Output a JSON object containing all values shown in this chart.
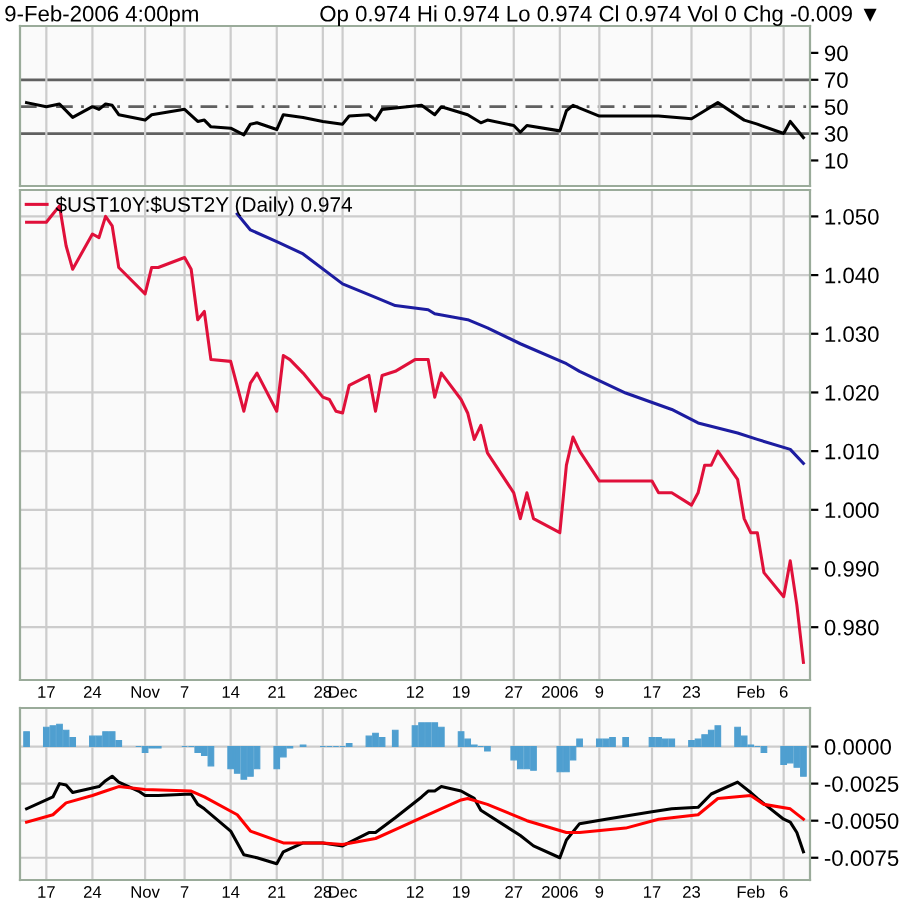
{
  "chart_data": [
    {
      "type": "line",
      "title": "9-Feb-2006 4:00pm",
      "subtitle": "Op 0.974 Hi 0.974 Lo 0.974 Cl 0.974 Vol 0 Chg -0.009 ▼",
      "xlim": [
        "2005-10-13",
        "2006-02-10"
      ],
      "ylim": [
        -9,
        110
      ],
      "yticks": [
        10,
        30,
        50,
        70,
        90
      ],
      "xticks": [
        "2005-10-17",
        "2005-10-24",
        "2005-11-01",
        "2005-11-07",
        "2005-11-14",
        "2005-11-21",
        "2005-11-28",
        "2005-12-01",
        "2005-12-12",
        "2005-12-19",
        "2005-12-27",
        "2006-01-03",
        "2006-01-09",
        "2006-01-17",
        "2006-01-23",
        "2006-02-01",
        "2006-02-06"
      ],
      "tick_labels": "y",
      "grid": "x",
      "ref_lines": [
        {
          "axis": "y",
          "value": 70,
          "color": "#606060",
          "line_style": "solid"
        },
        {
          "axis": "y",
          "value": 50,
          "color": "#606060",
          "line_style": "dashed"
        },
        {
          "axis": "y",
          "value": 30,
          "color": "#606060",
          "line_style": "solid"
        }
      ],
      "series": [
        {
          "color": "#000000",
          "x": [
            "2005-10-14",
            "2005-10-17",
            "2005-10-19",
            "2005-10-21",
            "2005-10-24",
            "2005-10-25",
            "2005-10-26",
            "2005-10-27",
            "2005-10-28",
            "2005-11-01",
            "2005-11-02",
            "2005-11-07",
            "2005-11-09",
            "2005-11-10",
            "2005-11-11",
            "2005-11-14",
            "2005-11-16",
            "2005-11-17",
            "2005-11-18",
            "2005-11-21",
            "2005-11-22",
            "2005-11-25",
            "2005-11-28",
            "2005-12-01",
            "2005-12-02",
            "2005-12-05",
            "2005-12-06",
            "2005-12-07",
            "2005-12-09",
            "2005-12-13",
            "2005-12-15",
            "2005-12-16",
            "2005-12-20",
            "2005-12-22",
            "2005-12-23",
            "2005-12-27",
            "2005-12-28",
            "2005-12-29",
            "2006-01-03",
            "2006-01-04",
            "2006-01-05",
            "2006-01-09",
            "2006-01-18",
            "2006-01-23",
            "2006-01-25",
            "2006-01-26",
            "2006-01-27",
            "2006-01-31",
            "2006-02-02",
            "2006-02-06",
            "2006-02-07",
            "2006-02-09"
          ],
          "values": [
            53,
            50,
            52,
            42,
            50,
            48,
            52,
            51,
            44,
            40,
            44,
            48,
            39,
            40,
            35,
            34,
            29,
            37,
            38,
            33,
            44,
            42,
            39,
            37,
            43,
            44,
            40,
            48,
            49,
            51,
            44,
            50,
            44,
            38,
            40,
            36,
            31,
            36,
            32,
            47,
            51,
            43,
            43,
            41,
            47,
            50,
            53,
            40,
            37,
            30,
            39,
            27
          ]
        }
      ]
    },
    {
      "type": "line",
      "xlim": [
        "2005-10-13",
        "2006-02-10"
      ],
      "ylim": [
        0.971,
        1.0545
      ],
      "yticks": [
        {
          "value": 0.98,
          "label": "0.980"
        },
        {
          "value": 0.99,
          "label": "0.990"
        },
        {
          "value": 1.0,
          "label": "1.000"
        },
        {
          "value": 1.01,
          "label": "1.010"
        },
        {
          "value": 1.02,
          "label": "1.020"
        },
        {
          "value": 1.03,
          "label": "1.030"
        },
        {
          "value": 1.04,
          "label": "1.040"
        },
        {
          "value": 1.05,
          "label": "1.050"
        }
      ],
      "xticks": [
        {
          "value": "2005-10-17",
          "label": "17"
        },
        {
          "value": "2005-10-24",
          "label": "24"
        },
        {
          "value": "2005-11-01",
          "label": "Nov"
        },
        {
          "value": "2005-11-07",
          "label": "7"
        },
        {
          "value": "2005-11-14",
          "label": "14"
        },
        {
          "value": "2005-11-21",
          "label": "21"
        },
        {
          "value": "2005-11-28",
          "label": "28"
        },
        {
          "value": "2005-12-01",
          "label": "Dec"
        },
        {
          "value": "2005-12-12",
          "label": "12"
        },
        {
          "value": "2005-12-19",
          "label": "19"
        },
        {
          "value": "2005-12-27",
          "label": "27"
        },
        {
          "value": "2006-01-03",
          "label": "2006"
        },
        {
          "value": "2006-01-09",
          "label": "9"
        },
        {
          "value": "2006-01-17",
          "label": "17"
        },
        {
          "value": "2006-01-23",
          "label": "23"
        },
        {
          "value": "2006-02-01",
          "label": "Feb"
        },
        {
          "value": "2006-02-06",
          "label": "6"
        }
      ],
      "grid": true,
      "legend": "top left",
      "series": [
        {
          "name": "$UST10Y:$UST2Y (Daily) 0.974",
          "color": "#e0103a",
          "x": [
            "2005-10-14",
            "2005-10-17",
            "2005-10-18",
            "2005-10-19",
            "2005-10-20",
            "2005-10-21",
            "2005-10-24",
            "2005-10-25",
            "2005-10-26",
            "2005-10-27",
            "2005-10-28",
            "2005-11-01",
            "2005-11-02",
            "2005-11-03",
            "2005-11-07",
            "2005-11-08",
            "2005-11-09",
            "2005-11-10",
            "2005-11-11",
            "2005-11-14",
            "2005-11-16",
            "2005-11-17",
            "2005-11-18",
            "2005-11-21",
            "2005-11-22",
            "2005-11-23",
            "2005-11-25",
            "2005-11-28",
            "2005-11-29",
            "2005-11-30",
            "2005-12-01",
            "2005-12-02",
            "2005-12-05",
            "2005-12-06",
            "2005-12-07",
            "2005-12-09",
            "2005-12-12",
            "2005-12-14",
            "2005-12-15",
            "2005-12-16",
            "2005-12-19",
            "2005-12-20",
            "2005-12-21",
            "2005-12-22",
            "2005-12-23",
            "2005-12-27",
            "2005-12-28",
            "2005-12-29",
            "2005-12-30",
            "2006-01-03",
            "2006-01-04",
            "2006-01-05",
            "2006-01-06",
            "2006-01-09",
            "2006-01-10",
            "2006-01-17",
            "2006-01-18",
            "2006-01-20",
            "2006-01-23",
            "2006-01-24",
            "2006-01-25",
            "2006-01-26",
            "2006-01-27",
            "2006-01-30",
            "2006-01-31",
            "2006-02-01",
            "2006-02-02",
            "2006-02-03",
            "2006-02-06",
            "2006-02-07",
            "2006-02-08",
            "2006-02-09"
          ],
          "values": [
            1.049,
            1.049,
            1.0504,
            1.0518,
            1.045,
            1.041,
            1.047,
            1.0464,
            1.05,
            1.0484,
            1.0413,
            1.0368,
            1.0413,
            1.0413,
            1.043,
            1.041,
            1.0324,
            1.0338,
            1.0256,
            1.0253,
            1.0168,
            1.0216,
            1.0233,
            1.0168,
            1.0263,
            1.0256,
            1.0233,
            1.0192,
            1.0188,
            1.0168,
            1.0165,
            1.0212,
            1.0229,
            1.0168,
            1.0229,
            1.0236,
            1.0256,
            1.0256,
            1.0192,
            1.0233,
            1.0188,
            1.0165,
            1.012,
            1.0144,
            1.0097,
            1.0029,
            0.9985,
            1.0029,
            0.9985,
            0.9961,
            1.0076,
            1.0124,
            1.01,
            1.0049,
            1.0049,
            1.0049,
            1.0029,
            1.0029,
            1.0008,
            1.0029,
            1.0076,
            1.0076,
            1.01,
            1.0052,
            0.9985,
            0.9961,
            0.9961,
            0.9893,
            0.9852,
            0.9913,
            0.9838,
            0.974
          ]
        },
        {
          "color": "#1c1ca0",
          "x": [
            "2005-11-15",
            "2005-11-17",
            "2005-11-21",
            "2005-11-25",
            "2005-12-01",
            "2005-12-06",
            "2005-12-09",
            "2005-12-14",
            "2005-12-15",
            "2005-12-20",
            "2005-12-23",
            "2005-12-28",
            "2006-01-04",
            "2006-01-06",
            "2006-01-13",
            "2006-01-20",
            "2006-01-24",
            "2006-01-30",
            "2006-02-02",
            "2006-02-07",
            "2006-02-09"
          ],
          "values": [
            1.0504,
            1.0477,
            1.0457,
            1.0436,
            1.0385,
            1.0362,
            1.0348,
            1.0341,
            1.0334,
            1.0324,
            1.031,
            1.0283,
            1.0249,
            1.0236,
            1.0199,
            1.0171,
            1.0148,
            1.0131,
            1.012,
            1.0103,
            1.0079
          ]
        }
      ]
    },
    {
      "type": "line",
      "xlim": [
        "2005-10-13",
        "2006-02-10"
      ],
      "ylim": [
        -0.009,
        0.0026
      ],
      "yticks": [
        {
          "value": 0,
          "label": "0.0000"
        },
        {
          "value": -0.0025,
          "label": "-0.0025"
        },
        {
          "value": -0.005,
          "label": "-0.0050"
        },
        {
          "value": -0.0075,
          "label": "-0.0075"
        }
      ],
      "xticks": [
        {
          "value": "2005-10-17",
          "label": "17"
        },
        {
          "value": "2005-10-24",
          "label": "24"
        },
        {
          "value": "2005-11-01",
          "label": "Nov"
        },
        {
          "value": "2005-11-07",
          "label": "7"
        },
        {
          "value": "2005-11-14",
          "label": "14"
        },
        {
          "value": "2005-11-21",
          "label": "21"
        },
        {
          "value": "2005-11-28",
          "label": "28"
        },
        {
          "value": "2005-12-01",
          "label": "Dec"
        },
        {
          "value": "2005-12-12",
          "label": "12"
        },
        {
          "value": "2005-12-19",
          "label": "19"
        },
        {
          "value": "2005-12-27",
          "label": "27"
        },
        {
          "value": "2006-01-03",
          "label": "2006"
        },
        {
          "value": "2006-01-09",
          "label": "9"
        },
        {
          "value": "2006-01-17",
          "label": "17"
        },
        {
          "value": "2006-01-23",
          "label": "23"
        },
        {
          "value": "2006-02-01",
          "label": "Feb"
        },
        {
          "value": "2006-02-06",
          "label": "6"
        }
      ],
      "grid": true,
      "series": [
        {
          "type": "bar",
          "color": "#4f9fd0",
          "x": [
            "2005-10-14",
            "2005-10-17",
            "2005-10-18",
            "2005-10-19",
            "2005-10-20",
            "2005-10-21",
            "2005-10-24",
            "2005-10-25",
            "2005-10-26",
            "2005-10-27",
            "2005-10-28",
            "2005-10-31",
            "2005-11-01",
            "2005-11-02",
            "2005-11-03",
            "2005-11-07",
            "2005-11-08",
            "2005-11-09",
            "2005-11-10",
            "2005-11-11",
            "2005-11-14",
            "2005-11-15",
            "2005-11-16",
            "2005-11-17",
            "2005-11-18",
            "2005-11-21",
            "2005-11-22",
            "2005-11-23",
            "2005-11-25",
            "2005-11-28",
            "2005-11-29",
            "2005-11-30",
            "2005-12-01",
            "2005-12-02",
            "2005-12-05",
            "2005-12-06",
            "2005-12-07",
            "2005-12-09",
            "2005-12-12",
            "2005-12-13",
            "2005-12-14",
            "2005-12-15",
            "2005-12-16",
            "2005-12-19",
            "2005-12-20",
            "2005-12-21",
            "2005-12-22",
            "2005-12-23",
            "2005-12-27",
            "2005-12-28",
            "2005-12-29",
            "2005-12-30",
            "2006-01-03",
            "2006-01-04",
            "2006-01-05",
            "2006-01-06",
            "2006-01-09",
            "2006-01-10",
            "2006-01-11",
            "2006-01-13",
            "2006-01-17",
            "2006-01-18",
            "2006-01-19",
            "2006-01-20",
            "2006-01-23",
            "2006-01-24",
            "2006-01-25",
            "2006-01-26",
            "2006-01-27",
            "2006-01-30",
            "2006-01-31",
            "2006-02-01",
            "2006-02-02",
            "2006-02-03",
            "2006-02-06",
            "2006-02-07",
            "2006-02-08",
            "2006-02-09"
          ],
          "values": [
            0.001,
            0.0013,
            0.0014,
            0.0015,
            0.0011,
            0.0006,
            0.0007,
            0.0007,
            0.001,
            0.001,
            0.0004,
            0,
            -0.0004,
            -0.0001,
            -0.0001,
            0,
            0,
            -0.0004,
            -0.0006,
            -0.0013,
            -0.0015,
            -0.0018,
            -0.0022,
            -0.002,
            -0.0015,
            -0.0015,
            -0.0007,
            -0.0001,
            0.0001,
            0,
            0,
            0,
            0,
            0.0002,
            0.0007,
            0.0009,
            0.0006,
            0.0011,
            0.0014,
            0.0016,
            0.0016,
            0.0016,
            0.0013,
            0.001,
            0.0005,
            0.0001,
            0,
            -0.0003,
            -0.0009,
            -0.0015,
            -0.0015,
            -0.0016,
            -0.0017,
            -0.0017,
            -0.0009,
            0.0005,
            0.0005,
            0.0005,
            0.0006,
            0.0006,
            0.0006,
            0.0006,
            0.0005,
            0.0005,
            0.0004,
            0.0005,
            0.0008,
            0.0011,
            0.0014,
            0.0013,
            0.0007,
            0.0001,
            0,
            -0.0004,
            -0.0012,
            -0.0011,
            -0.0014,
            -0.002
          ]
        },
        {
          "color": "#000000",
          "x": [
            "2005-10-14",
            "2005-10-18",
            "2005-10-19",
            "2005-10-20",
            "2005-10-21",
            "2005-10-24",
            "2005-10-25",
            "2005-10-26",
            "2005-10-27",
            "2005-10-28",
            "2005-10-31",
            "2005-11-01",
            "2005-11-03",
            "2005-11-08",
            "2005-11-09",
            "2005-11-10",
            "2005-11-14",
            "2005-11-16",
            "2005-11-18",
            "2005-11-21",
            "2005-11-22",
            "2005-11-25",
            "2005-11-28",
            "2005-12-01",
            "2005-12-05",
            "2005-12-06",
            "2005-12-09",
            "2005-12-13",
            "2005-12-14",
            "2005-12-15",
            "2005-12-16",
            "2005-12-19",
            "2005-12-21",
            "2005-12-22",
            "2005-12-28",
            "2005-12-30",
            "2006-01-03",
            "2006-01-04",
            "2006-01-06",
            "2006-01-10",
            "2006-01-17",
            "2006-01-20",
            "2006-01-24",
            "2006-01-26",
            "2006-01-30",
            "2006-02-01",
            "2006-02-02",
            "2006-02-06",
            "2006-02-07",
            "2006-02-08",
            "2006-02-09"
          ],
          "values": [
            -0.0042,
            -0.0034,
            -0.0025,
            -0.0026,
            -0.0031,
            -0.0028,
            -0.0027,
            -0.0023,
            -0.002,
            -0.0024,
            -0.003,
            -0.0033,
            -0.0033,
            -0.0032,
            -0.0039,
            -0.0042,
            -0.0057,
            -0.0073,
            -0.0075,
            -0.0079,
            -0.0071,
            -0.0065,
            -0.0065,
            -0.0067,
            -0.0058,
            -0.0058,
            -0.0048,
            -0.0034,
            -0.003,
            -0.003,
            -0.0027,
            -0.003,
            -0.0035,
            -0.0043,
            -0.006,
            -0.0067,
            -0.0075,
            -0.0063,
            -0.0052,
            -0.0049,
            -0.0044,
            -0.0042,
            -0.0041,
            -0.0032,
            -0.0024,
            -0.0031,
            -0.0035,
            -0.0049,
            -0.0051,
            -0.0058,
            -0.0071
          ]
        },
        {
          "color": "#ff0000",
          "x": [
            "2005-10-14",
            "2005-10-18",
            "2005-10-20",
            "2005-10-24",
            "2005-10-26",
            "2005-10-28",
            "2005-11-01",
            "2005-11-08",
            "2005-11-10",
            "2005-11-15",
            "2005-11-17",
            "2005-11-22",
            "2005-11-28",
            "2005-12-01",
            "2005-12-06",
            "2005-12-09",
            "2005-12-13",
            "2005-12-19",
            "2005-12-20",
            "2005-12-23",
            "2005-12-29",
            "2006-01-04",
            "2006-01-06",
            "2006-01-13",
            "2006-01-18",
            "2006-01-24",
            "2006-01-27",
            "2006-02-01",
            "2006-02-03",
            "2006-02-07",
            "2006-02-09"
          ],
          "values": [
            -0.0051,
            -0.0046,
            -0.0038,
            -0.0033,
            -0.003,
            -0.0027,
            -0.0029,
            -0.003,
            -0.0034,
            -0.0046,
            -0.0057,
            -0.0065,
            -0.0065,
            -0.0066,
            -0.0062,
            -0.0056,
            -0.0048,
            -0.0036,
            -0.0035,
            -0.0039,
            -0.005,
            -0.0058,
            -0.0058,
            -0.0055,
            -0.0049,
            -0.0046,
            -0.0035,
            -0.0033,
            -0.0039,
            -0.0042,
            -0.0049
          ]
        }
      ]
    }
  ]
}
